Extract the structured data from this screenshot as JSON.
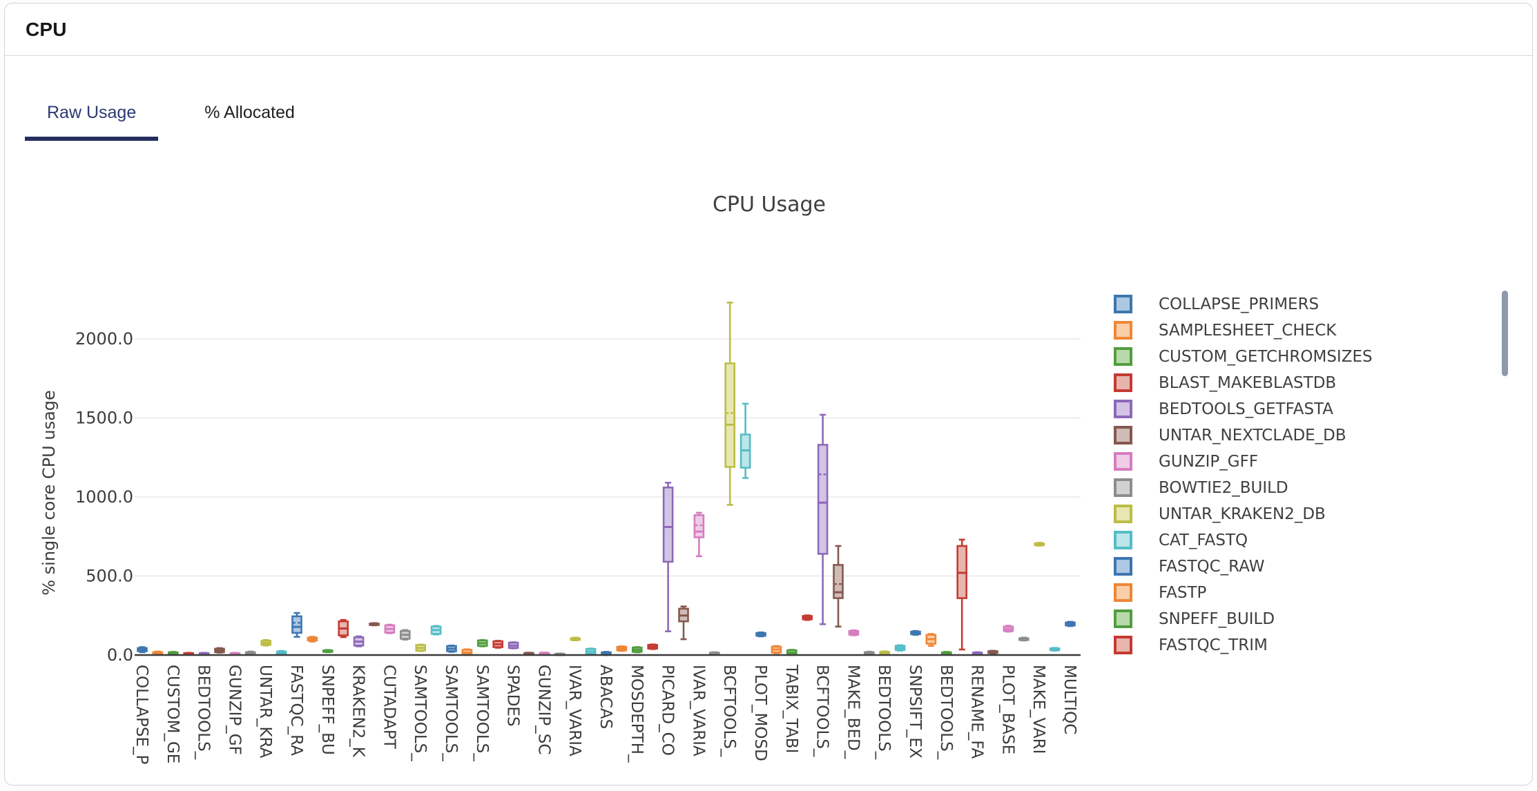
{
  "window": {
    "title": "CPU"
  },
  "tabs": [
    {
      "label": "Raw Usage",
      "active": true
    },
    {
      "label": "% Allocated",
      "active": false
    }
  ],
  "accent_color": "#252e5e",
  "chart_data": {
    "type": "box",
    "title": "CPU Usage",
    "ylabel": "% single core CPU usage",
    "yticks": [
      0,
      500,
      1000,
      1500,
      2000
    ],
    "ytick_labels": [
      "0.0",
      "500.0",
      "1000.0",
      "1500.0",
      "2000.0"
    ],
    "ylim": [
      0,
      2300
    ],
    "grid": "horizontal",
    "legend_position": "right",
    "legend_entries": [
      "COLLAPSE_PRIMERS",
      "SAMPLESHEET_CHECK",
      "CUSTOM_GETCHROMSIZES",
      "BLAST_MAKEBLASTDB",
      "BEDTOOLS_GETFASTA",
      "UNTAR_NEXTCLADE_DB",
      "GUNZIP_GFF",
      "BOWTIE2_BUILD",
      "UNTAR_KRAKEN2_DB",
      "CAT_FASTQ",
      "FASTQC_RAW",
      "FASTP",
      "SNPEFF_BUILD",
      "FASTQC_TRIM"
    ],
    "palette": [
      {
        "stroke": "#3d76b0",
        "fill": "#adc8e2"
      },
      {
        "stroke": "#ef8636",
        "fill": "#f9cfa8"
      },
      {
        "stroke": "#519e3e",
        "fill": "#b9d9ab"
      },
      {
        "stroke": "#c53a32",
        "fill": "#e8b4ae"
      },
      {
        "stroke": "#8d69b8",
        "fill": "#d3c4e5"
      },
      {
        "stroke": "#85584e",
        "fill": "#cfbcb6"
      },
      {
        "stroke": "#d57dbe",
        "fill": "#f0cce7"
      },
      {
        "stroke": "#8d8d8d",
        "fill": "#d2d2d2"
      },
      {
        "stroke": "#bcbd45",
        "fill": "#e6e7b2"
      },
      {
        "stroke": "#54bcc7",
        "fill": "#bce6ea"
      }
    ],
    "boxes": [
      {
        "tick_label": "COLLAPSE_P",
        "min": 18,
        "q1": 24,
        "median": 33,
        "q3": 44,
        "max": 50
      },
      {
        "tick_label": "",
        "min": 3,
        "q1": 6,
        "median": 10,
        "q3": 18,
        "max": 22
      },
      {
        "tick_label": "CUSTOM_GE",
        "min": 3,
        "q1": 7,
        "median": 12,
        "q3": 17,
        "max": 20
      },
      {
        "tick_label": "",
        "min": 2,
        "q1": 4,
        "median": 8,
        "q3": 12,
        "max": 14
      },
      {
        "tick_label": "BEDTOOLS_",
        "min": 2,
        "q1": 4,
        "median": 8,
        "q3": 12,
        "max": 14
      },
      {
        "tick_label": "",
        "min": 15,
        "q1": 18,
        "median": 28,
        "q3": 40,
        "max": 44
      },
      {
        "tick_label": "GUNZIP_GF",
        "min": 2,
        "q1": 4,
        "median": 8,
        "q3": 12,
        "max": 14
      },
      {
        "tick_label": "",
        "min": 4,
        "q1": 8,
        "median": 13,
        "q3": 18,
        "max": 22
      },
      {
        "tick_label": "UNTAR_KRA",
        "min": 60,
        "q1": 65,
        "median": 76,
        "q3": 90,
        "max": 95
      },
      {
        "tick_label": "",
        "min": 4,
        "q1": 8,
        "median": 14,
        "q3": 22,
        "max": 26
      },
      {
        "tick_label": "FASTQC_RA",
        "min": 115,
        "q1": 140,
        "median": 178,
        "q3": 245,
        "max": 266,
        "mean": 204
      },
      {
        "tick_label": "",
        "min": 85,
        "q1": 92,
        "median": 100,
        "q3": 110,
        "max": 115
      },
      {
        "tick_label": "SNPEFF_BU",
        "min": 18,
        "q1": 21,
        "median": 25,
        "q3": 29,
        "max": 32
      },
      {
        "tick_label": "",
        "min": 113,
        "q1": 124,
        "median": 168,
        "q3": 213,
        "max": 222
      },
      {
        "tick_label": "KRAKEN2_K",
        "min": 55,
        "q1": 60,
        "median": 85,
        "q3": 112,
        "max": 118
      },
      {
        "tick_label": "",
        "min": 188,
        "q1": 191,
        "median": 195,
        "q3": 199,
        "max": 202
      },
      {
        "tick_label": "CUTADAPT",
        "min": 138,
        "q1": 142,
        "median": 165,
        "q3": 188,
        "max": 192
      },
      {
        "tick_label": "",
        "min": 98,
        "q1": 103,
        "median": 128,
        "q3": 152,
        "max": 158
      },
      {
        "tick_label": "SAMTOOLS_",
        "min": 25,
        "q1": 28,
        "median": 45,
        "q3": 63,
        "max": 66
      },
      {
        "tick_label": "",
        "min": 130,
        "q1": 134,
        "median": 158,
        "q3": 180,
        "max": 184
      },
      {
        "tick_label": "SAMTOOLS_",
        "min": 20,
        "q1": 24,
        "median": 40,
        "q3": 57,
        "max": 60
      },
      {
        "tick_label": "",
        "min": 0,
        "q1": 2,
        "median": 15,
        "q3": 33,
        "max": 36
      },
      {
        "tick_label": "SAMTOOLS_",
        "min": 55,
        "q1": 58,
        "median": 75,
        "q3": 92,
        "max": 95
      },
      {
        "tick_label": "",
        "min": 46,
        "q1": 50,
        "median": 68,
        "q3": 87,
        "max": 90
      },
      {
        "tick_label": "SPADES",
        "min": 42,
        "q1": 45,
        "median": 60,
        "q3": 78,
        "max": 81
      },
      {
        "tick_label": "",
        "min": 5,
        "q1": 7,
        "median": 10,
        "q3": 13,
        "max": 15
      },
      {
        "tick_label": "GUNZIP_SC",
        "min": 3,
        "q1": 5,
        "median": 9,
        "q3": 14,
        "max": 16
      },
      {
        "tick_label": "",
        "min": 1,
        "q1": 3,
        "median": 5,
        "q3": 8,
        "max": 10
      },
      {
        "tick_label": "IVAR_VARIA",
        "min": 93,
        "q1": 96,
        "median": 100,
        "q3": 106,
        "max": 110
      },
      {
        "tick_label": "",
        "min": 5,
        "q1": 8,
        "median": 22,
        "q3": 38,
        "max": 41
      },
      {
        "tick_label": "ABACAS",
        "min": 0,
        "q1": 2,
        "median": 9,
        "q3": 17,
        "max": 20
      },
      {
        "tick_label": "",
        "min": 26,
        "q1": 29,
        "median": 41,
        "q3": 52,
        "max": 55
      },
      {
        "tick_label": "MOSDEPTH_",
        "min": 17,
        "q1": 20,
        "median": 33,
        "q3": 47,
        "max": 50
      },
      {
        "tick_label": "",
        "min": 38,
        "q1": 41,
        "median": 52,
        "q3": 64,
        "max": 67
      },
      {
        "tick_label": "PICARD_CO",
        "min": 150,
        "q1": 590,
        "median": 810,
        "q3": 1060,
        "max": 1090
      },
      {
        "tick_label": "",
        "min": 100,
        "q1": 213,
        "median": 250,
        "q3": 293,
        "max": 307
      },
      {
        "tick_label": "IVAR_VARIA",
        "min": 625,
        "q1": 745,
        "median": 781,
        "q3": 885,
        "max": 900,
        "mean": 821
      },
      {
        "tick_label": "",
        "min": 4,
        "q1": 6,
        "median": 10,
        "q3": 15,
        "max": 18
      },
      {
        "tick_label": "BCFTOOLS_",
        "min": 950,
        "q1": 1190,
        "median": 1457,
        "q3": 1845,
        "max": 2230,
        "mean": 1531
      },
      {
        "tick_label": "",
        "min": 1120,
        "q1": 1185,
        "median": 1295,
        "q3": 1395,
        "max": 1590
      },
      {
        "tick_label": "PLOT_MOSD",
        "min": 118,
        "q1": 122,
        "median": 130,
        "q3": 139,
        "max": 143
      },
      {
        "tick_label": "",
        "min": 12,
        "q1": 16,
        "median": 35,
        "q3": 53,
        "max": 57
      },
      {
        "tick_label": "TABIX_TABI",
        "min": 0,
        "q1": 3,
        "median": 15,
        "q3": 30,
        "max": 33
      },
      {
        "tick_label": "",
        "min": 222,
        "q1": 226,
        "median": 236,
        "q3": 247,
        "max": 251
      },
      {
        "tick_label": "BCFTOOLS_",
        "min": 195,
        "q1": 640,
        "median": 964,
        "q3": 1330,
        "max": 1520,
        "mean": 1143
      },
      {
        "tick_label": "",
        "min": 180,
        "q1": 360,
        "median": 397,
        "q3": 570,
        "max": 690,
        "mean": 449
      },
      {
        "tick_label": "MAKE_BED_",
        "min": 125,
        "q1": 129,
        "median": 140,
        "q3": 152,
        "max": 156
      },
      {
        "tick_label": "",
        "min": 8,
        "q1": 10,
        "median": 14,
        "q3": 18,
        "max": 21
      },
      {
        "tick_label": "BEDTOOLS_",
        "min": 6,
        "q1": 9,
        "median": 14,
        "q3": 20,
        "max": 23
      },
      {
        "tick_label": "",
        "min": 28,
        "q1": 32,
        "median": 45,
        "q3": 58,
        "max": 62
      },
      {
        "tick_label": "SNPSIFT_EX",
        "min": 128,
        "q1": 132,
        "median": 140,
        "q3": 148,
        "max": 152
      },
      {
        "tick_label": "",
        "min": 58,
        "q1": 72,
        "median": 100,
        "q3": 128,
        "max": 133
      },
      {
        "tick_label": "BEDTOOLS_",
        "min": 4,
        "q1": 6,
        "median": 11,
        "q3": 17,
        "max": 20
      },
      {
        "tick_label": "",
        "min": 35,
        "q1": 360,
        "median": 520,
        "q3": 690,
        "max": 730
      },
      {
        "tick_label": "RENAME_FA",
        "min": 4,
        "q1": 6,
        "median": 10,
        "q3": 15,
        "max": 18
      },
      {
        "tick_label": "",
        "min": 10,
        "q1": 13,
        "median": 18,
        "q3": 24,
        "max": 27
      },
      {
        "tick_label": "PLOT_BASE",
        "min": 148,
        "q1": 152,
        "median": 165,
        "q3": 180,
        "max": 185
      },
      {
        "tick_label": "",
        "min": 92,
        "q1": 95,
        "median": 100,
        "q3": 106,
        "max": 110
      },
      {
        "tick_label": "MAKE_VARI",
        "min": 692,
        "q1": 695,
        "median": 700,
        "q3": 706,
        "max": 710
      },
      {
        "tick_label": "",
        "min": 28,
        "q1": 31,
        "median": 36,
        "q3": 42,
        "max": 45
      },
      {
        "tick_label": "MULTIQC",
        "min": 183,
        "q1": 187,
        "median": 196,
        "q3": 206,
        "max": 210
      }
    ]
  }
}
